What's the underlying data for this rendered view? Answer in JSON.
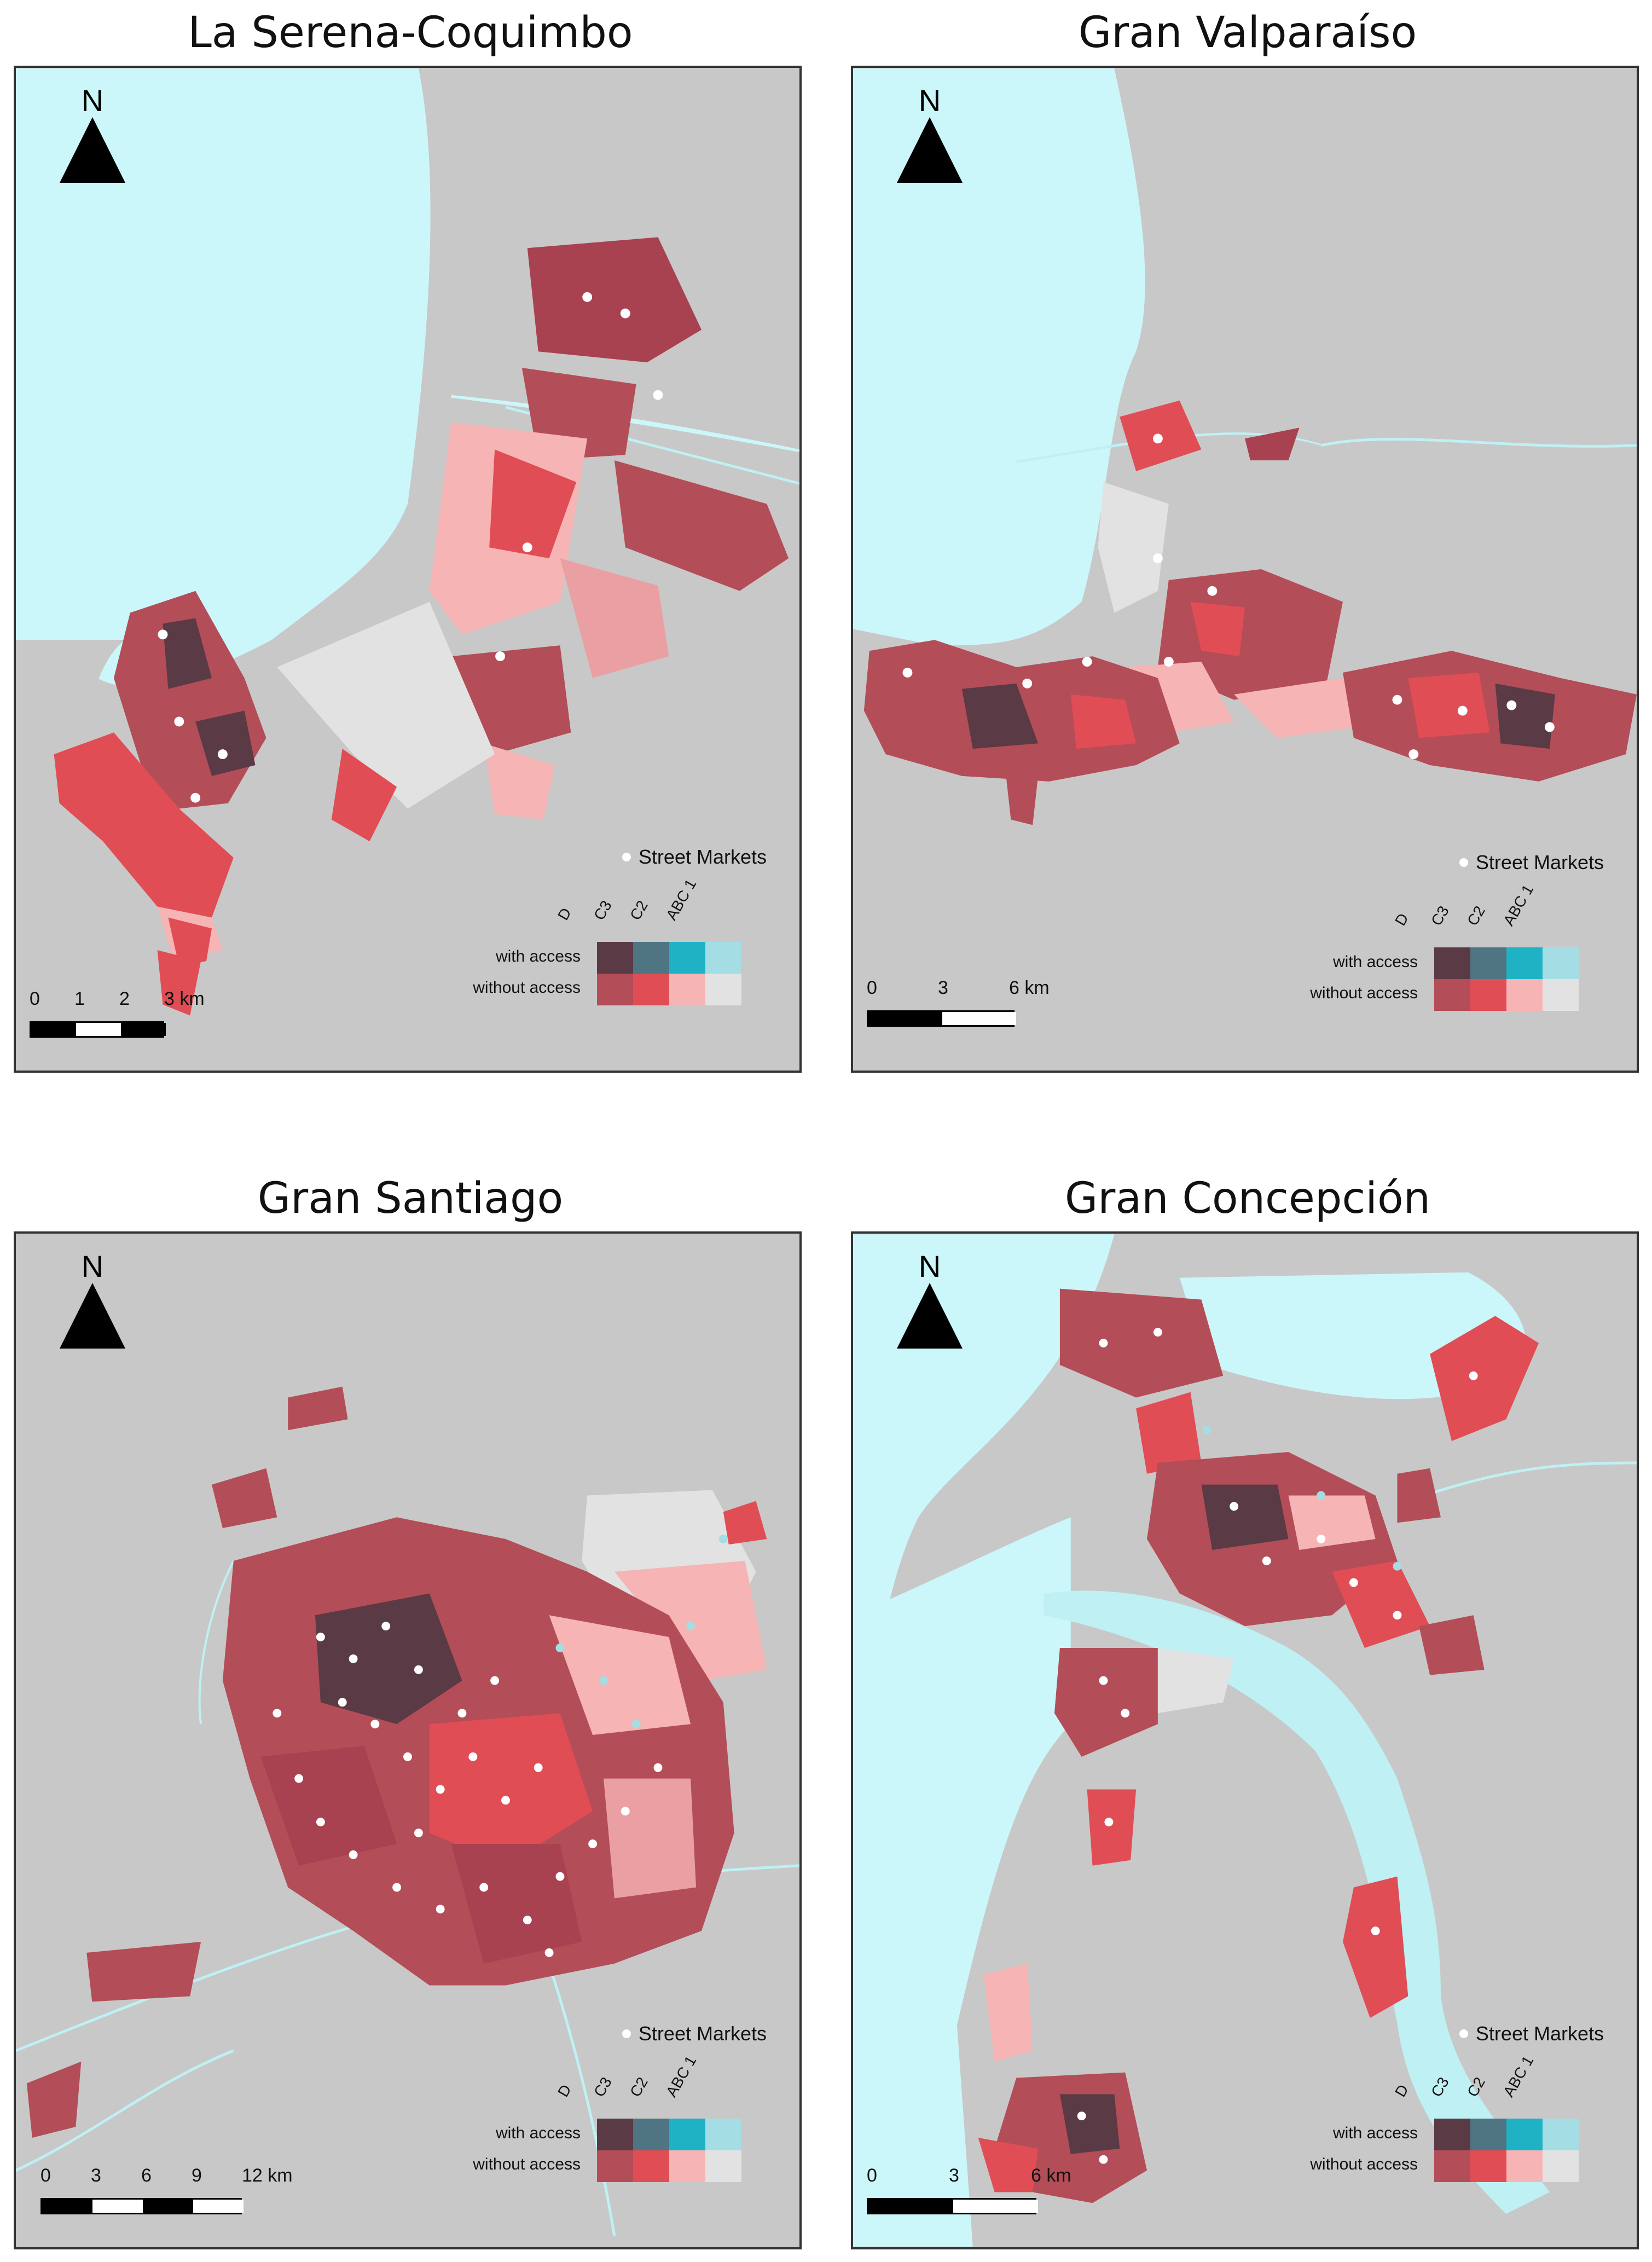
{
  "legend": {
    "street_markets": "Street Markets",
    "columns": [
      "D",
      "C3",
      "C2",
      "ABC 1"
    ],
    "rows": [
      "with access",
      "without access"
    ],
    "colors_with_access": [
      "#5a3a45",
      "#4f7482",
      "#1fb2c4",
      "#a4dde4"
    ],
    "colors_without_access": [
      "#b34d57",
      "#e04d55",
      "#f6b4b4",
      "#e2e2e2"
    ]
  },
  "north_label": "N",
  "panels": [
    {
      "title": "La Serena-Coquimbo",
      "scale_labels": [
        "0",
        "1",
        "2",
        "3 km"
      ]
    },
    {
      "title": "Gran Valparaíso",
      "scale_labels": [
        "0",
        "3",
        "6 km"
      ]
    },
    {
      "title": "Gran Santiago",
      "scale_labels": [
        "0",
        "3",
        "6",
        "9",
        "12 km"
      ]
    },
    {
      "title": "Gran Concepción",
      "scale_labels": [
        "0",
        "3",
        "6 km"
      ]
    }
  ],
  "colors": {
    "land": "#c8c8c8",
    "water": "#ccf7fa",
    "river": "#bff0f4"
  }
}
